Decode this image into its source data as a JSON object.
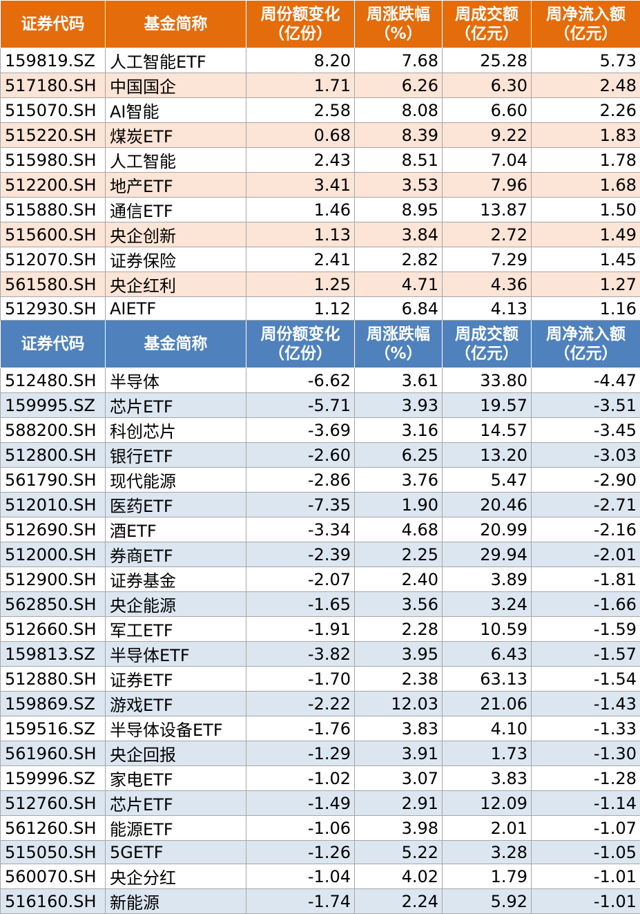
{
  "headers": {
    "code": "证券代码",
    "name": "基金简称",
    "share_change": [
      "周份额变化",
      "（亿份）"
    ],
    "pct_change": [
      "周涨跌幅",
      "（%）"
    ],
    "turnover": [
      "周成交额",
      "（亿元）"
    ],
    "net_inflow": [
      "周净流入额",
      "（亿元）"
    ]
  },
  "inflow_rows": [
    [
      "159819.SZ",
      "人工智能ETF",
      "8.20",
      "7.68",
      "25.28",
      "5.73"
    ],
    [
      "517180.SH",
      "中国国企",
      "1.71",
      "6.26",
      "6.30",
      "2.48"
    ],
    [
      "515070.SH",
      "AI智能",
      "2.58",
      "8.08",
      "6.60",
      "2.26"
    ],
    [
      "515220.SH",
      "煤炭ETF",
      "0.68",
      "8.39",
      "9.22",
      "1.83"
    ],
    [
      "515980.SH",
      "人工智能",
      "2.43",
      "8.51",
      "7.04",
      "1.78"
    ],
    [
      "512200.SH",
      "地产ETF",
      "3.41",
      "3.53",
      "7.96",
      "1.68"
    ],
    [
      "515880.SH",
      "通信ETF",
      "1.46",
      "8.95",
      "13.87",
      "1.50"
    ],
    [
      "515600.SH",
      "央企创新",
      "1.13",
      "3.84",
      "2.72",
      "1.49"
    ],
    [
      "512070.SH",
      "证券保险",
      "2.41",
      "2.82",
      "7.29",
      "1.45"
    ],
    [
      "561580.SH",
      "央企红利",
      "1.25",
      "4.71",
      "4.36",
      "1.27"
    ],
    [
      "512930.SH",
      "AIETF",
      "1.12",
      "6.84",
      "4.13",
      "1.16"
    ]
  ],
  "outflow_rows": [
    [
      "512480.SH",
      "半导体",
      "-6.62",
      "3.61",
      "33.80",
      "-4.47"
    ],
    [
      "159995.SZ",
      "芯片ETF",
      "-5.71",
      "3.93",
      "19.57",
      "-3.51"
    ],
    [
      "588200.SH",
      "科创芯片",
      "-3.69",
      "3.16",
      "14.57",
      "-3.45"
    ],
    [
      "512800.SH",
      "银行ETF",
      "-2.60",
      "6.25",
      "13.20",
      "-3.03"
    ],
    [
      "561790.SH",
      "现代能源",
      "-2.86",
      "3.76",
      "5.47",
      "-2.90"
    ],
    [
      "512010.SH",
      "医药ETF",
      "-7.35",
      "1.90",
      "20.46",
      "-2.71"
    ],
    [
      "512690.SH",
      "酒ETF",
      "-3.34",
      "4.68",
      "20.99",
      "-2.16"
    ],
    [
      "512000.SH",
      "券商ETF",
      "-2.39",
      "2.25",
      "29.94",
      "-2.01"
    ],
    [
      "512900.SH",
      "证券基金",
      "-2.07",
      "2.40",
      "3.89",
      "-1.81"
    ],
    [
      "562850.SH",
      "央企能源",
      "-1.65",
      "3.56",
      "3.24",
      "-1.66"
    ],
    [
      "512660.SH",
      "军工ETF",
      "-1.91",
      "2.28",
      "10.59",
      "-1.59"
    ],
    [
      "159813.SZ",
      "半导体ETF",
      "-3.82",
      "3.95",
      "6.43",
      "-1.57"
    ],
    [
      "512880.SH",
      "证券ETF",
      "-1.70",
      "2.38",
      "63.13",
      "-1.54"
    ],
    [
      "159869.SZ",
      "游戏ETF",
      "-2.22",
      "12.03",
      "21.06",
      "-1.43"
    ],
    [
      "159516.SZ",
      "半导体设备ETF",
      "-1.76",
      "3.83",
      "4.10",
      "-1.33"
    ],
    [
      "561960.SH",
      "央企回报",
      "-1.29",
      "3.91",
      "1.73",
      "-1.30"
    ],
    [
      "159996.SZ",
      "家电ETF",
      "-1.02",
      "3.07",
      "3.83",
      "-1.28"
    ],
    [
      "512760.SH",
      "芯片ETF",
      "-1.49",
      "2.91",
      "12.09",
      "-1.14"
    ],
    [
      "561260.SH",
      "能源ETF",
      "-1.06",
      "3.98",
      "2.01",
      "-1.07"
    ],
    [
      "515050.SH",
      "5GETF",
      "-1.26",
      "5.22",
      "3.28",
      "-1.05"
    ],
    [
      "560070.SH",
      "央企分红",
      "-1.04",
      "4.02",
      "1.79",
      "-1.01"
    ],
    [
      "516160.SH",
      "新能源",
      "-1.74",
      "2.24",
      "5.92",
      "-1.01"
    ]
  ],
  "colors": {
    "top_header": "#e46c0a",
    "top_alt_row": "#fce4d6",
    "bottom_header": "#4f81bd",
    "bottom_alt_row": "#dce6f1"
  }
}
